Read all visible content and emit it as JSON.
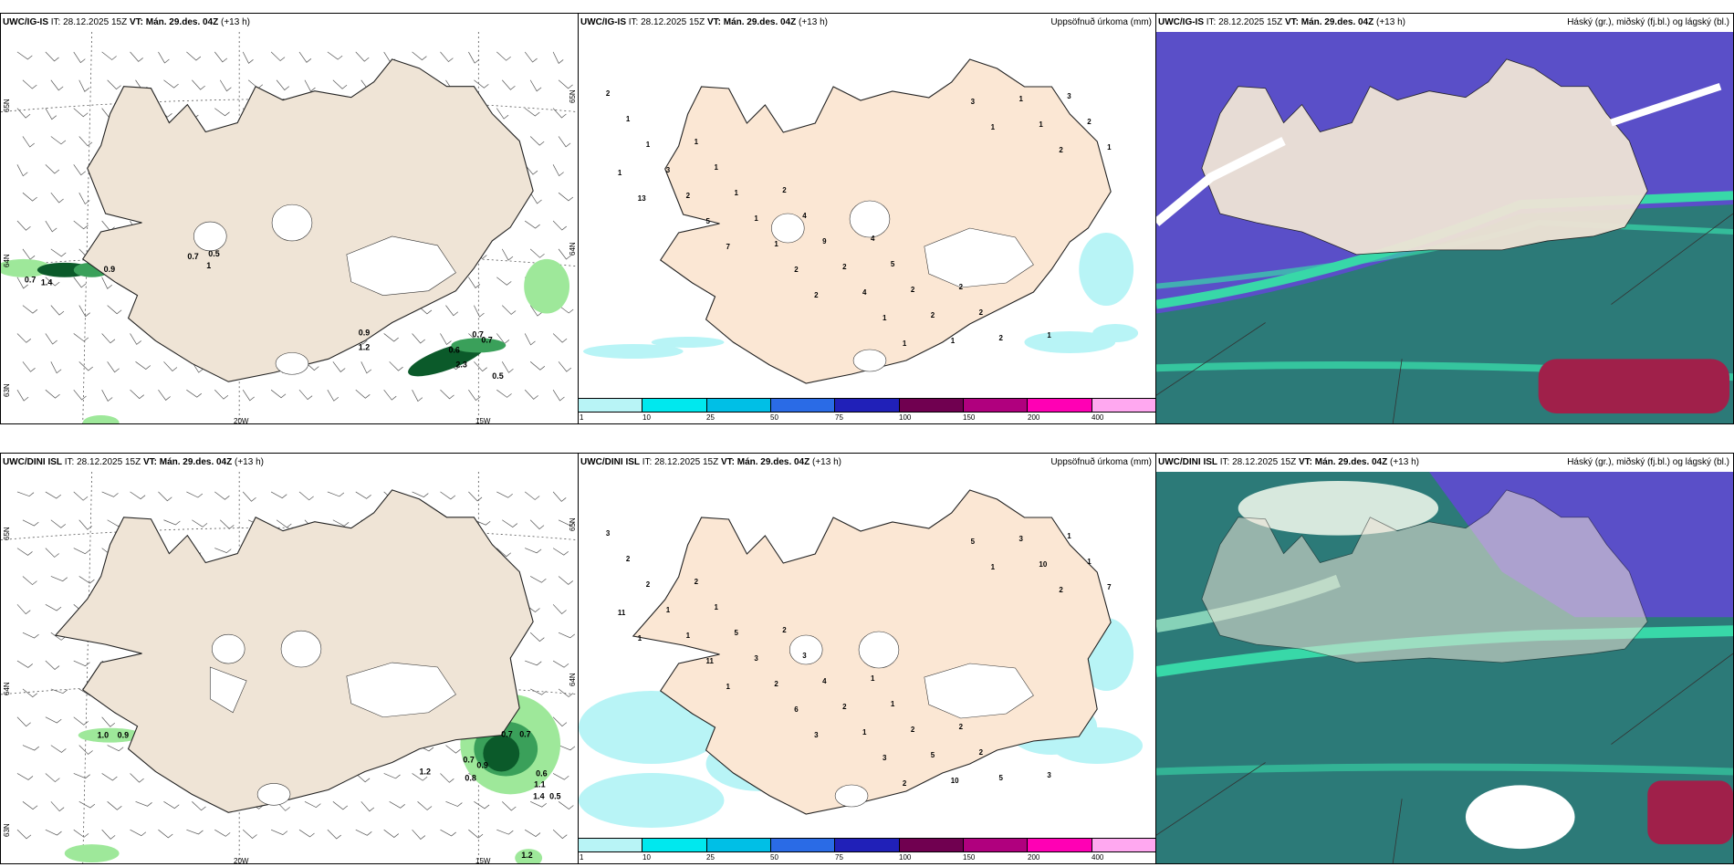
{
  "rows": [
    {
      "model": "UWC/IG-IS",
      "it_label": "IT:",
      "it_value": "28.12.2025 15Z",
      "vt_label": "VT:",
      "vt_value": "Mán. 29.des. 04Z",
      "lead": "(+13 h)"
    },
    {
      "model": "UWC/DINI ISL",
      "it_label": "IT:",
      "it_value": "28.12.2025 15Z",
      "vt_label": "VT:",
      "vt_value": "Mán. 29.des. 04Z",
      "lead": "(+13 h)"
    }
  ],
  "precip_title": "Uppsöfnuð úrkoma (mm)",
  "cloud_title": "Háský (gr.), miðský (fj.bl.) og lágský (bl.)",
  "colorbar": {
    "ticks": [
      "1",
      "10",
      "25",
      "50",
      "75",
      "100",
      "150",
      "200",
      "400"
    ],
    "colors": [
      "#b8f4f6",
      "#00e8ee",
      "#00bfe6",
      "#2a6be6",
      "#2020b8",
      "#700050",
      "#b0007e",
      "#ff00b4",
      "#ffa8f0"
    ]
  },
  "wind_map": {
    "lon_labels": [
      "20W",
      "15W"
    ],
    "lat_labels_left": [
      "65N",
      "64N",
      "63N"
    ],
    "lat_labels_right": [
      "65N",
      "64N"
    ]
  },
  "top_wind_values": [
    "0.7",
    "0.5",
    "1",
    "0.9",
    "0.7",
    "1.4",
    "0.9",
    "1.2",
    "0.6",
    "0.7",
    "0.7",
    "2.3",
    "0.5"
  ],
  "bottom_wind_values": [
    "1.0",
    "0.9",
    "1.2",
    "0.7",
    "0.9",
    "0.8",
    "0.7",
    "0.7",
    "0.6",
    "1.1",
    "1.4",
    "0.5",
    "1.2"
  ],
  "top_precip_values": [
    "2",
    "1",
    "2",
    "4",
    "2",
    "1",
    "1",
    "1",
    "4",
    "5",
    "2",
    "3",
    "1",
    "1",
    "9",
    "2",
    "2",
    "2",
    "3",
    "1",
    "2",
    "2",
    "1",
    "1",
    "2",
    "1",
    "4",
    "1",
    "1",
    "1",
    "5",
    "2",
    "1",
    "3",
    "2",
    "13",
    "7",
    "2",
    "1",
    "1"
  ],
  "bottom_precip_values": [
    "3",
    "2",
    "2",
    "1",
    "2",
    "3",
    "2",
    "1",
    "3",
    "1",
    "2",
    "1",
    "2",
    "5",
    "4",
    "2",
    "5",
    "1",
    "1",
    "3",
    "2",
    "5",
    "3",
    "7",
    "1",
    "2",
    "1",
    "10",
    "10",
    "11",
    "11",
    "6",
    "3",
    "5",
    "2",
    "1",
    "1",
    "3",
    "2",
    "1"
  ],
  "colors": {
    "land": "#efe4d6",
    "high_cloud": "#5a4fc8",
    "mid_cloud": "#2c7a78",
    "low_cloud": "#38d8a8",
    "low_cloud_red": "#a0204a",
    "precip_light": "#b8f4f6",
    "wind_precip_dark": "#0b5a2a",
    "wind_precip_light": "#9ee89a"
  }
}
